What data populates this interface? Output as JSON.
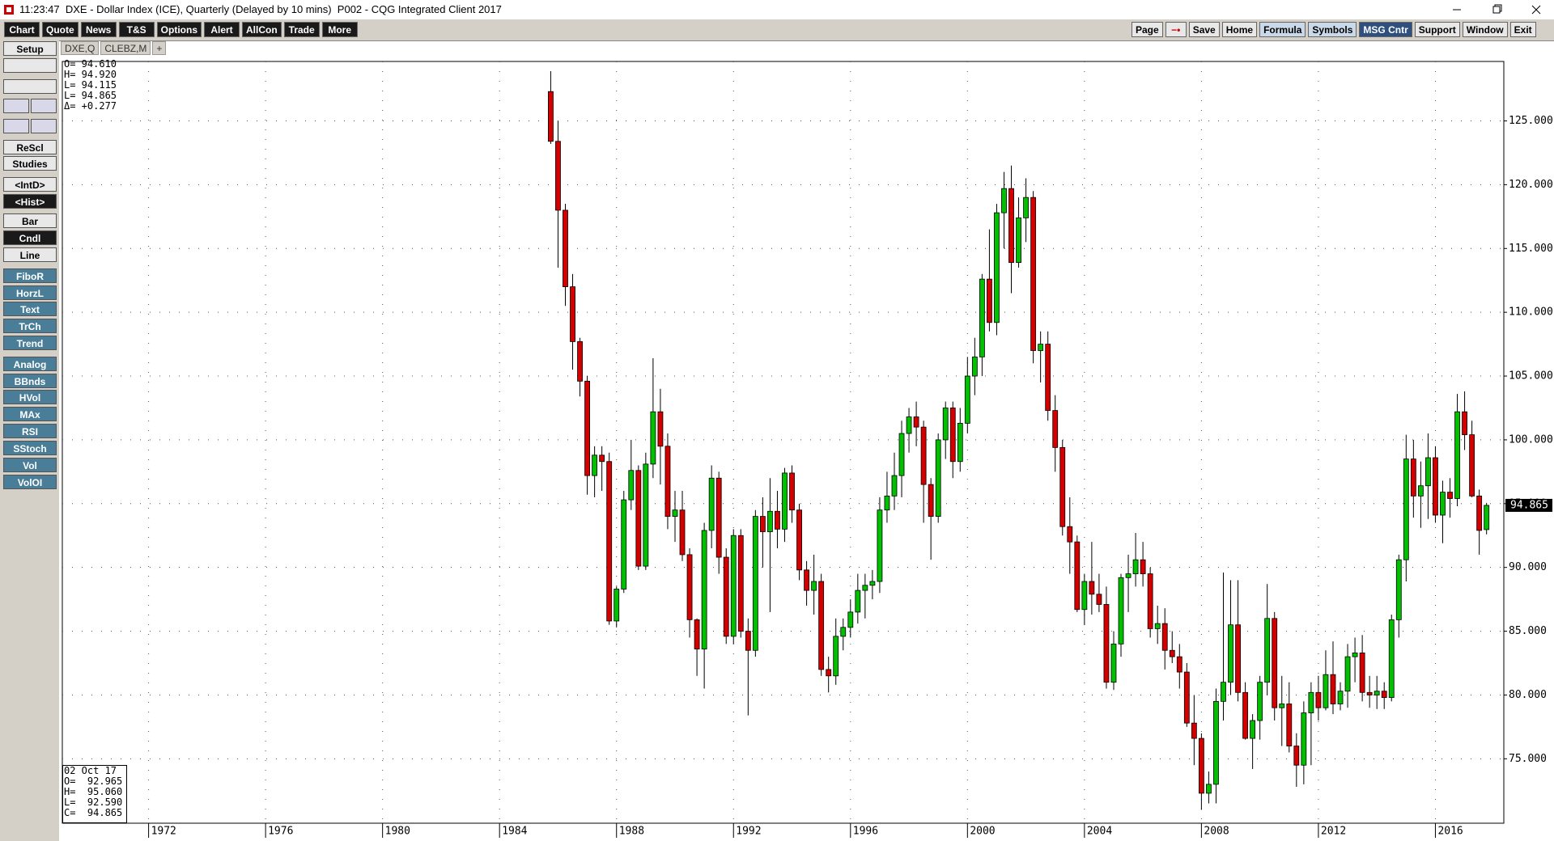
{
  "title_bar": "11:23:47  DXE - Dollar Index (ICE), Quarterly (Delayed by 10 mins)  P002 - CQG Integrated Client 2017",
  "toolbar_left": [
    "Chart",
    "Quote",
    "News",
    "T&S",
    "Options",
    "Alert",
    "AllCon",
    "Trade",
    "More"
  ],
  "toolbar_right": [
    {
      "label": "Page",
      "theme": "light"
    },
    {
      "label": "Save",
      "theme": "light"
    },
    {
      "label": "Home",
      "theme": "light"
    },
    {
      "label": "Formula",
      "theme": "blue"
    },
    {
      "label": "Symbols",
      "theme": "blue"
    },
    {
      "label": "MSG Cntr",
      "theme": "navy"
    },
    {
      "label": "Support",
      "theme": "light"
    },
    {
      "label": "Window",
      "theme": "light"
    },
    {
      "label": "Exit",
      "theme": "light"
    }
  ],
  "sidebar": [
    {
      "label": "Setup",
      "theme": "light"
    },
    {
      "label": "ReScl",
      "theme": "light"
    },
    {
      "label": "Studies",
      "theme": "light"
    },
    {
      "label": "<IntD>",
      "theme": "light"
    },
    {
      "label": "<Hist>",
      "theme": "dark"
    },
    {
      "label": "Bar",
      "theme": "light"
    },
    {
      "label": "Cndl",
      "theme": "dark"
    },
    {
      "label": "Line",
      "theme": "light"
    },
    {
      "label": "FiboR",
      "theme": "teal"
    },
    {
      "label": "HorzL",
      "theme": "teal"
    },
    {
      "label": "Text",
      "theme": "teal"
    },
    {
      "label": "TrCh",
      "theme": "teal"
    },
    {
      "label": "Trend",
      "theme": "teal"
    },
    {
      "label": "Analog",
      "theme": "teal"
    },
    {
      "label": "BBnds",
      "theme": "teal"
    },
    {
      "label": "HVol",
      "theme": "teal"
    },
    {
      "label": "MAx",
      "theme": "teal"
    },
    {
      "label": "RSI",
      "theme": "teal"
    },
    {
      "label": "SStoch",
      "theme": "teal"
    },
    {
      "label": "Vol",
      "theme": "teal"
    },
    {
      "label": "VolOI",
      "theme": "teal"
    }
  ],
  "tabs": [
    "DXE,Q",
    "CLEBZ,M",
    "+"
  ],
  "readout": [
    "O= 94.610",
    "H= 94.920",
    "L= 94.115",
    "L= 94.865",
    "Δ= +0.277"
  ],
  "info_box": [
    "02 Oct 17",
    "O=  92.965",
    "H=  95.060",
    "L=  92.590",
    "C=  94.865"
  ],
  "last_price_label": "94.865",
  "chart_data": {
    "type": "candlestick",
    "up_color": "#00c000",
    "down_color": "#d40000",
    "grid": true,
    "xlim": [
      1969.05,
      2018.34
    ],
    "xticks": [
      1972,
      1976,
      1980,
      1984,
      1988,
      1992,
      1996,
      2000,
      2004,
      2008,
      2012,
      2016
    ],
    "ylim": [
      69.95,
      129.66
    ],
    "yticks": [
      {
        "value": 75,
        "label": "75.000"
      },
      {
        "value": 80,
        "label": "80.000"
      },
      {
        "value": 85,
        "label": "85.000"
      },
      {
        "value": 90,
        "label": "90.000"
      },
      {
        "value": 95,
        "label": "95.000"
      },
      {
        "value": 100,
        "label": "100.000"
      },
      {
        "value": 105,
        "label": "105.000"
      },
      {
        "value": 110,
        "label": "110.000"
      },
      {
        "value": 115,
        "label": "115.000"
      },
      {
        "value": 120,
        "label": "120.000"
      },
      {
        "value": 125,
        "label": "125.000"
      }
    ],
    "last_price": 94.865,
    "x": [
      1985.75,
      1986,
      1986.25,
      1986.5,
      1986.75,
      1987,
      1987.25,
      1987.5,
      1987.75,
      1988,
      1988.25,
      1988.5,
      1988.75,
      1989,
      1989.25,
      1989.5,
      1989.75,
      1990,
      1990.25,
      1990.5,
      1990.75,
      1991,
      1991.25,
      1991.5,
      1991.75,
      1992,
      1992.25,
      1992.5,
      1992.75,
      1993,
      1993.25,
      1993.5,
      1993.75,
      1994,
      1994.25,
      1994.5,
      1994.75,
      1995,
      1995.25,
      1995.5,
      1995.75,
      1996,
      1996.25,
      1996.5,
      1996.75,
      1997,
      1997.25,
      1997.5,
      1997.75,
      1998,
      1998.25,
      1998.5,
      1998.75,
      1999,
      1999.25,
      1999.5,
      1999.75,
      2000,
      2000.25,
      2000.5,
      2000.75,
      2001,
      2001.25,
      2001.5,
      2001.75,
      2002,
      2002.25,
      2002.5,
      2002.75,
      2003,
      2003.25,
      2003.5,
      2003.75,
      2004,
      2004.25,
      2004.5,
      2004.75,
      2005,
      2005.25,
      2005.5,
      2005.75,
      2006,
      2006.25,
      2006.5,
      2006.75,
      2007,
      2007.25,
      2007.5,
      2007.75,
      2008,
      2008.25,
      2008.5,
      2008.75,
      2009,
      2009.25,
      2009.5,
      2009.75,
      2010,
      2010.25,
      2010.5,
      2010.75,
      2011,
      2011.25,
      2011.5,
      2011.75,
      2012,
      2012.25,
      2012.5,
      2012.75,
      2013,
      2013.25,
      2013.5,
      2013.75,
      2014,
      2014.25,
      2014.5,
      2014.75,
      2015,
      2015.25,
      2015.5,
      2015.75,
      2016,
      2016.25,
      2016.5,
      2016.75,
      2017,
      2017.25,
      2017.5,
      2017.75
    ],
    "ohlc": [
      [
        127.3,
        128.9,
        123.2,
        123.4
      ],
      [
        123.4,
        125,
        113.5,
        118
      ],
      [
        118,
        118.5,
        110.5,
        112
      ],
      [
        112,
        113,
        105.5,
        107.7
      ],
      [
        107.7,
        108,
        103.4,
        104.6
      ],
      [
        104.6,
        105,
        95.7,
        97.2
      ],
      [
        97.2,
        99.5,
        95.5,
        98.8
      ],
      [
        98.8,
        99.5,
        96,
        98.3
      ],
      [
        98.3,
        99,
        85.5,
        85.8
      ],
      [
        85.8,
        88.5,
        85.3,
        88.3
      ],
      [
        88.3,
        96,
        88,
        95.3
      ],
      [
        95.3,
        100,
        94.5,
        97.6
      ],
      [
        97.6,
        98,
        89.8,
        90.1
      ],
      [
        90.1,
        99,
        89.8,
        98.1
      ],
      [
        98.1,
        106.4,
        97,
        102.2
      ],
      [
        102.2,
        104,
        96.5,
        99.5
      ],
      [
        99.5,
        100.5,
        93,
        94
      ],
      [
        94,
        96,
        92,
        94.5
      ],
      [
        94.5,
        96,
        90.5,
        91
      ],
      [
        91,
        91.5,
        84.5,
        85.9
      ],
      [
        85.9,
        86,
        81.5,
        83.6
      ],
      [
        83.6,
        93.5,
        80.5,
        92.9
      ],
      [
        92.9,
        98,
        91.5,
        97
      ],
      [
        97,
        97.5,
        89.5,
        90.8
      ],
      [
        90.8,
        91.5,
        84,
        84.6
      ],
      [
        84.6,
        93,
        84,
        92.5
      ],
      [
        92.5,
        93,
        84.5,
        85
      ],
      [
        85,
        86,
        78.4,
        83.5
      ],
      [
        83.5,
        94.5,
        83,
        94
      ],
      [
        94,
        95.5,
        90,
        92.8
      ],
      [
        92.8,
        97,
        86.5,
        94.4
      ],
      [
        94.4,
        96,
        91.5,
        93
      ],
      [
        93,
        97.8,
        92,
        97.4
      ],
      [
        97.4,
        98,
        93.5,
        94.5
      ],
      [
        94.5,
        95,
        89,
        89.8
      ],
      [
        89.8,
        90.5,
        87,
        88.2
      ],
      [
        88.2,
        91,
        86.3,
        88.9
      ],
      [
        88.9,
        89.5,
        81.5,
        82
      ],
      [
        82,
        83,
        80.2,
        81.5
      ],
      [
        81.5,
        86,
        80.8,
        84.6
      ],
      [
        84.6,
        86,
        83.5,
        85.3
      ],
      [
        85.3,
        87.5,
        84.5,
        86.5
      ],
      [
        86.5,
        89.5,
        85.6,
        88.2
      ],
      [
        88.2,
        89.5,
        86,
        88.6
      ],
      [
        88.6,
        89.8,
        87.5,
        88.9
      ],
      [
        88.9,
        95.5,
        88,
        94.5
      ],
      [
        94.5,
        97.5,
        93.5,
        95.6
      ],
      [
        95.6,
        99,
        94.5,
        97.2
      ],
      [
        97.2,
        101.5,
        95.5,
        100.5
      ],
      [
        100.5,
        102.5,
        99,
        101.8
      ],
      [
        101.8,
        103,
        99.5,
        101
      ],
      [
        101,
        101.5,
        93.5,
        96.5
      ],
      [
        96.5,
        97,
        90.6,
        94
      ],
      [
        94,
        100.5,
        93.5,
        100
      ],
      [
        100,
        103,
        98.5,
        102.5
      ],
      [
        102.5,
        103,
        97,
        98.3
      ],
      [
        98.3,
        102.5,
        97.5,
        101.3
      ],
      [
        101.3,
        106.5,
        100.5,
        105
      ],
      [
        105,
        108,
        103.5,
        106.5
      ],
      [
        106.5,
        113,
        105,
        112.6
      ],
      [
        112.6,
        116.5,
        108.5,
        109.2
      ],
      [
        109.2,
        118.5,
        108.2,
        117.8
      ],
      [
        117.8,
        121,
        115,
        119.7
      ],
      [
        119.7,
        121.5,
        111.5,
        113.9
      ],
      [
        113.9,
        119,
        113.5,
        117.4
      ],
      [
        117.4,
        120.5,
        115.5,
        119
      ],
      [
        119,
        119.5,
        106,
        107
      ],
      [
        107,
        108.5,
        104.5,
        107.5
      ],
      [
        107.5,
        108.5,
        101.5,
        102.3
      ],
      [
        102.3,
        103.5,
        97.5,
        99.4
      ],
      [
        99.4,
        100,
        92.5,
        93.2
      ],
      [
        93.2,
        95.5,
        89.5,
        92
      ],
      [
        92,
        92.5,
        86.5,
        86.7
      ],
      [
        86.7,
        89.5,
        85.5,
        88.9
      ],
      [
        88.9,
        92,
        86.3,
        87.9
      ],
      [
        87.9,
        89.5,
        86.5,
        87.1
      ],
      [
        87.1,
        88.5,
        80.5,
        81
      ],
      [
        81,
        85,
        80.4,
        84
      ],
      [
        84,
        89.5,
        83,
        89.2
      ],
      [
        89.2,
        91,
        86.5,
        89.5
      ],
      [
        89.5,
        92.7,
        88.5,
        90.6
      ],
      [
        90.6,
        92,
        88.5,
        89.5
      ],
      [
        89.5,
        90,
        84.5,
        85.2
      ],
      [
        85.2,
        87,
        84,
        85.6
      ],
      [
        85.6,
        86.8,
        82,
        83.5
      ],
      [
        83.5,
        85,
        82.5,
        83
      ],
      [
        83,
        84,
        80.5,
        81.8
      ],
      [
        81.8,
        82.5,
        77.5,
        77.8
      ],
      [
        77.8,
        80,
        74.5,
        76.6
      ],
      [
        76.6,
        77,
        71,
        72.3
      ],
      [
        72.3,
        74,
        71.5,
        73
      ],
      [
        73,
        80.5,
        71.5,
        79.5
      ],
      [
        79.5,
        89.6,
        78,
        81
      ],
      [
        81,
        89,
        80,
        85.5
      ],
      [
        85.5,
        89,
        79.5,
        80.2
      ],
      [
        80.2,
        81,
        76.5,
        76.6
      ],
      [
        76.6,
        78.5,
        74.2,
        78
      ],
      [
        78,
        81.5,
        76.5,
        81
      ],
      [
        81,
        88.7,
        80,
        86
      ],
      [
        86,
        86.5,
        78,
        79
      ],
      [
        79,
        81.5,
        76,
        79.3
      ],
      [
        79.3,
        81,
        75.5,
        76
      ],
      [
        76,
        77,
        72.8,
        74.5
      ],
      [
        74.5,
        79.5,
        73,
        78.6
      ],
      [
        78.6,
        81,
        74.5,
        80.2
      ],
      [
        80.2,
        81.5,
        78,
        79
      ],
      [
        79,
        83.5,
        78.8,
        81.6
      ],
      [
        81.6,
        84.2,
        78.5,
        79.3
      ],
      [
        79.3,
        81,
        78.8,
        80.3
      ],
      [
        80.3,
        84,
        79,
        83
      ],
      [
        83,
        84.5,
        81,
        83.3
      ],
      [
        83.3,
        84.7,
        79.5,
        80.2
      ],
      [
        80.2,
        81.5,
        79,
        80
      ],
      [
        80,
        81.5,
        78.9,
        80.3
      ],
      [
        80.3,
        81,
        78.9,
        79.8
      ],
      [
        79.8,
        86.3,
        79.5,
        85.9
      ],
      [
        85.9,
        91,
        84.5,
        90.6
      ],
      [
        90.6,
        100.4,
        88.9,
        98.5
      ],
      [
        98.5,
        100,
        93.9,
        95.6
      ],
      [
        95.6,
        98.3,
        93.1,
        96.4
      ],
      [
        96.4,
        100.5,
        93.8,
        98.6
      ],
      [
        98.6,
        99.5,
        93.5,
        94.1
      ],
      [
        94.1,
        96.8,
        91.9,
        95.9
      ],
      [
        95.9,
        97,
        93.9,
        95.4
      ],
      [
        95.4,
        103.6,
        94.8,
        102.2
      ],
      [
        102.2,
        103.8,
        99.2,
        100.4
      ],
      [
        100.4,
        101.5,
        95.5,
        95.6
      ],
      [
        95.6,
        96.1,
        91,
        92.9
      ],
      [
        92.965,
        95.06,
        92.59,
        94.865
      ]
    ]
  }
}
